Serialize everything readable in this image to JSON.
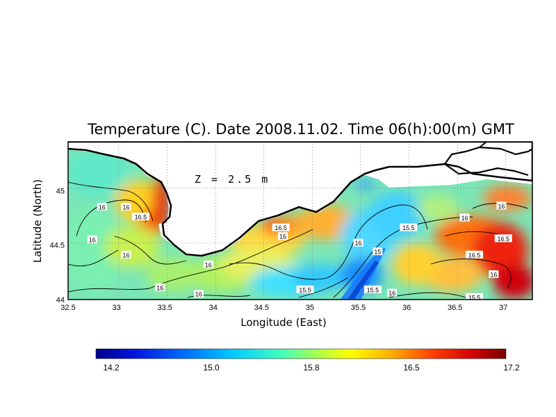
{
  "title": "Temperature (C). Date 2008.11.02. Time 06(h):00(m) GMT",
  "depth_label": "Z = 2.5 m",
  "chart_data": {
    "type": "heatmap",
    "title": "Temperature (C). Date 2008.11.02. Time 06(h):00(m) GMT",
    "xlabel": "Longitude (East)",
    "ylabel": "Latitude (North)",
    "xlim": [
      32.5,
      37.3
    ],
    "ylim": [
      44.0,
      45.45
    ],
    "x_ticks": [
      "32.5",
      "33",
      "33.5",
      "34",
      "34.5",
      "35",
      "35.5",
      "36",
      "36.5",
      "37"
    ],
    "y_ticks": [
      "44",
      "44.5",
      "45"
    ],
    "grid": true,
    "variable": "Temperature (C)",
    "depth": "Z = 2.5 m",
    "colorbar": {
      "min": 14.0,
      "max": 17.2,
      "ticks": [
        "14.2",
        "15.0",
        "15.8",
        "16.5",
        "17.2"
      ],
      "colors": [
        "#00008c",
        "#0040ff",
        "#00b4ff",
        "#30ffd0",
        "#b0ff40",
        "#ffff00",
        "#ffa000",
        "#ff3000",
        "#c00000",
        "#7a0000"
      ]
    },
    "contour_labels": [
      {
        "lon": 32.85,
        "lat": 44.85,
        "value": "16"
      },
      {
        "lon": 33.1,
        "lat": 44.85,
        "value": "16"
      },
      {
        "lon": 33.25,
        "lat": 44.76,
        "value": "16.5"
      },
      {
        "lon": 32.75,
        "lat": 44.55,
        "value": "16"
      },
      {
        "lon": 33.1,
        "lat": 44.41,
        "value": "16"
      },
      {
        "lon": 33.95,
        "lat": 44.32,
        "value": "16"
      },
      {
        "lon": 33.45,
        "lat": 44.11,
        "value": "16"
      },
      {
        "lon": 33.85,
        "lat": 44.05,
        "value": "16"
      },
      {
        "lon": 34.7,
        "lat": 44.66,
        "value": "16.5"
      },
      {
        "lon": 34.72,
        "lat": 44.58,
        "value": "16"
      },
      {
        "lon": 35.5,
        "lat": 44.52,
        "value": "16"
      },
      {
        "lon": 35.7,
        "lat": 44.44,
        "value": "15"
      },
      {
        "lon": 36.02,
        "lat": 44.66,
        "value": "15.5"
      },
      {
        "lon": 34.95,
        "lat": 44.09,
        "value": "15.5"
      },
      {
        "lon": 35.65,
        "lat": 44.09,
        "value": "15.5"
      },
      {
        "lon": 35.85,
        "lat": 44.06,
        "value": "16"
      },
      {
        "lon": 36.6,
        "lat": 44.75,
        "value": "16"
      },
      {
        "lon": 36.98,
        "lat": 44.86,
        "value": "16"
      },
      {
        "lon": 37.0,
        "lat": 44.56,
        "value": "16.5"
      },
      {
        "lon": 36.7,
        "lat": 44.41,
        "value": "16.5"
      },
      {
        "lon": 36.9,
        "lat": 44.23,
        "value": "16"
      },
      {
        "lon": 36.7,
        "lat": 44.02,
        "value": "15.5"
      }
    ]
  }
}
